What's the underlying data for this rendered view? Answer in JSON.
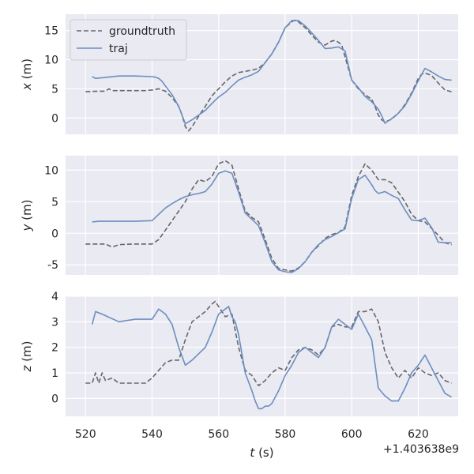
{
  "chart_data": {
    "type": "line",
    "xlabel_var": "t",
    "xlabel_unit": " (s)",
    "x_offset_text": "+1.403638e9",
    "xlim": [
      514,
      632
    ],
    "xticks": [
      520,
      540,
      560,
      580,
      600,
      620
    ],
    "grid": true,
    "legend": {
      "placement": "top-left",
      "panel": 0
    },
    "colors": {
      "groundtruth": "#676767",
      "traj": "#6c8ebf",
      "background": "#eaeaf2",
      "grid": "#ffffff"
    },
    "series_names": [
      "groundtruth",
      "traj"
    ],
    "panels": [
      {
        "ylabel_var": "x",
        "ylabel_unit": " (m)",
        "ylim": [
          -2.8,
          17.8
        ],
        "yticks": [
          0,
          5,
          10,
          15
        ],
        "series": [
          {
            "name": "groundtruth",
            "x": [
              520,
              524,
              526,
              527,
              528,
              530,
              534,
              538,
              540,
              542,
              544,
              546,
              548,
              549,
              550,
              551,
              552,
              554,
              556,
              558,
              560,
              562,
              564,
              566,
              568,
              570,
              572,
              574,
              576,
              578,
              580,
              582,
              583,
              584,
              586,
              588,
              590,
              592,
              594,
              595,
              596,
              597,
              598,
              600,
              602,
              604,
              606,
              607,
              608,
              609,
              610,
              612,
              614,
              616,
              618,
              620,
              621,
              622,
              624,
              626,
              628,
              630
            ],
            "values": [
              4.5,
              4.6,
              4.6,
              5.0,
              4.7,
              4.7,
              4.7,
              4.7,
              4.8,
              5.0,
              4.6,
              3.5,
              2.0,
              0.5,
              -1.5,
              -2.2,
              -1.5,
              0.3,
              2.0,
              3.8,
              5.0,
              6.2,
              7.2,
              7.8,
              8.0,
              8.2,
              8.5,
              9.5,
              11.0,
              13.0,
              15.5,
              16.5,
              16.8,
              16.5,
              15.5,
              14.2,
              13.0,
              12.5,
              13.2,
              13.3,
              13.0,
              12.5,
              10.5,
              6.5,
              5.0,
              4.0,
              3.2,
              2.0,
              0.5,
              -0.3,
              -0.7,
              -0.2,
              0.8,
              2.3,
              4.3,
              6.8,
              7.5,
              7.7,
              7.3,
              6.0,
              4.8,
              4.5
            ]
          },
          {
            "name": "traj",
            "x": [
              522,
              523,
              525,
              530,
              535,
              540,
              541,
              542,
              543,
              544,
              546,
              548,
              550,
              552,
              554,
              556,
              558,
              560,
              562,
              564,
              566,
              568,
              570,
              572,
              574,
              576,
              578,
              580,
              582,
              584,
              586,
              588,
              590,
              592,
              594,
              596,
              598,
              600,
              602,
              604,
              606,
              608,
              609,
              610,
              612,
              614,
              616,
              618,
              620,
              622,
              624,
              626,
              628,
              630
            ],
            "values": [
              7.1,
              6.8,
              6.9,
              7.2,
              7.2,
              7.1,
              7.0,
              6.8,
              6.3,
              5.5,
              4.0,
              2.0,
              -1.0,
              -0.3,
              0.5,
              1.3,
              2.5,
              3.6,
              4.4,
              5.5,
              6.5,
              7.0,
              7.4,
              8.0,
              9.5,
              11.0,
              13.0,
              15.5,
              16.7,
              16.7,
              15.8,
              14.6,
              13.3,
              11.9,
              12.0,
              12.2,
              11.5,
              6.5,
              5.2,
              3.7,
              2.8,
              1.5,
              0.4,
              -0.9,
              -0.1,
              0.8,
              2.1,
              4.1,
              6.4,
              8.5,
              7.9,
              7.2,
              6.6,
              6.5
            ]
          }
        ]
      },
      {
        "ylabel_var": "y",
        "ylabel_unit": " (m)",
        "ylim": [
          -6.6,
          12.3
        ],
        "yticks": [
          -5,
          0,
          5,
          10
        ],
        "series": [
          {
            "name": "groundtruth",
            "x": [
              520,
              522,
              524,
              526,
              528,
              530,
              534,
              538,
              540,
              542,
              544,
              546,
              548,
              550,
              552,
              554,
              556,
              558,
              560,
              562,
              564,
              566,
              568,
              570,
              572,
              574,
              576,
              578,
              580,
              582,
              584,
              586,
              588,
              590,
              592,
              594,
              596,
              598,
              600,
              602,
              604,
              606,
              608,
              610,
              612,
              614,
              616,
              618,
              620,
              622,
              624,
              626,
              628,
              630
            ],
            "values": [
              -1.7,
              -1.7,
              -1.7,
              -1.7,
              -2.2,
              -1.8,
              -1.7,
              -1.7,
              -1.7,
              -1.0,
              0.5,
              2.0,
              3.5,
              5.0,
              7.0,
              8.5,
              8.2,
              9.0,
              11.0,
              11.5,
              10.8,
              7.0,
              3.5,
              2.5,
              1.8,
              -1.0,
              -4.0,
              -5.6,
              -5.8,
              -6.0,
              -5.5,
              -4.5,
              -3.0,
              -2.0,
              -0.8,
              -0.2,
              0.1,
              1.0,
              6.0,
              9.0,
              11.0,
              10.0,
              8.5,
              8.5,
              8.0,
              6.5,
              5.0,
              3.0,
              2.0,
              1.8,
              0.8,
              -0.3,
              -1.5,
              -1.8
            ]
          },
          {
            "name": "traj",
            "x": [
              522,
              524,
              530,
              535,
              540,
              542,
              544,
              546,
              548,
              550,
              552,
              554,
              556,
              558,
              560,
              562,
              564,
              566,
              568,
              570,
              572,
              574,
              576,
              578,
              580,
              582,
              584,
              586,
              588,
              590,
              592,
              594,
              596,
              598,
              600,
              602,
              604,
              606,
              607,
              608,
              610,
              612,
              614,
              616,
              618,
              620,
              622,
              624,
              626,
              628,
              630
            ],
            "values": [
              1.8,
              1.9,
              1.9,
              1.9,
              2.0,
              3.0,
              4.0,
              4.7,
              5.3,
              5.8,
              6.1,
              6.3,
              6.6,
              7.8,
              9.5,
              9.9,
              9.5,
              6.5,
              3.2,
              2.2,
              1.2,
              -1.5,
              -4.5,
              -5.8,
              -6.1,
              -6.2,
              -5.6,
              -4.5,
              -3.0,
              -1.8,
              -1.0,
              -0.5,
              0.1,
              0.7,
              5.5,
              8.5,
              9.2,
              7.7,
              6.8,
              6.3,
              6.6,
              6.0,
              5.5,
              3.7,
              2.1,
              2.0,
              2.4,
              0.9,
              -1.4,
              -1.5,
              -1.5
            ]
          }
        ]
      },
      {
        "ylabel_var": "z",
        "ylabel_unit": " (m)",
        "ylim": [
          -0.7,
          4.0
        ],
        "yticks": [
          0,
          1,
          2,
          3,
          4
        ],
        "series": [
          {
            "name": "groundtruth",
            "x": [
              520,
              522,
              523,
              524,
              525,
              526,
              528,
              530,
              532,
              534,
              536,
              538,
              540,
              542,
              544,
              546,
              548,
              550,
              552,
              554,
              556,
              558,
              559,
              560,
              562,
              564,
              566,
              568,
              570,
              572,
              574,
              576,
              578,
              580,
              582,
              584,
              586,
              588,
              590,
              592,
              594,
              596,
              598,
              600,
              602,
              604,
              606,
              608,
              610,
              612,
              614,
              616,
              618,
              620,
              622,
              624,
              626,
              628,
              630
            ],
            "values": [
              0.6,
              0.6,
              1.0,
              0.6,
              1.0,
              0.7,
              0.8,
              0.6,
              0.6,
              0.6,
              0.6,
              0.6,
              0.8,
              1.1,
              1.4,
              1.5,
              1.5,
              2.3,
              3.0,
              3.2,
              3.4,
              3.7,
              3.8,
              3.6,
              3.2,
              3.3,
              2.0,
              1.1,
              0.9,
              0.5,
              0.7,
              1.0,
              1.2,
              1.1,
              1.6,
              1.9,
              2.0,
              1.9,
              1.7,
              2.0,
              2.8,
              2.9,
              2.8,
              2.8,
              3.4,
              3.4,
              3.5,
              3.0,
              1.8,
              1.2,
              0.8,
              1.1,
              0.8,
              1.2,
              1.0,
              0.9,
              1.0,
              0.7,
              0.6
            ]
          },
          {
            "name": "traj",
            "x": [
              522,
              523,
              525,
              530,
              535,
              540,
              542,
              543,
              544,
              546,
              548,
              550,
              552,
              554,
              556,
              558,
              560,
              562,
              563,
              564,
              565,
              566,
              568,
              570,
              571,
              572,
              573,
              574,
              575,
              576,
              578,
              580,
              582,
              584,
              586,
              588,
              590,
              592,
              594,
              596,
              598,
              600,
              602,
              604,
              606,
              608,
              610,
              612,
              613,
              614,
              616,
              618,
              620,
              622,
              624,
              626,
              628,
              630
            ],
            "values": [
              2.9,
              3.4,
              3.3,
              3.0,
              3.1,
              3.1,
              3.5,
              3.4,
              3.3,
              2.9,
              2.0,
              1.3,
              1.5,
              1.75,
              2.0,
              2.6,
              3.3,
              3.5,
              3.6,
              3.2,
              3.0,
              2.5,
              1.0,
              0.3,
              -0.1,
              -0.4,
              -0.4,
              -0.3,
              -0.3,
              -0.2,
              0.3,
              0.9,
              1.3,
              1.8,
              2.0,
              1.8,
              1.6,
              2.0,
              2.8,
              3.1,
              2.9,
              2.7,
              3.3,
              2.8,
              2.3,
              0.4,
              0.1,
              -0.1,
              -0.1,
              -0.1,
              0.4,
              1.0,
              1.3,
              1.7,
              1.2,
              0.7,
              0.2,
              0.05
            ]
          }
        ]
      }
    ]
  }
}
